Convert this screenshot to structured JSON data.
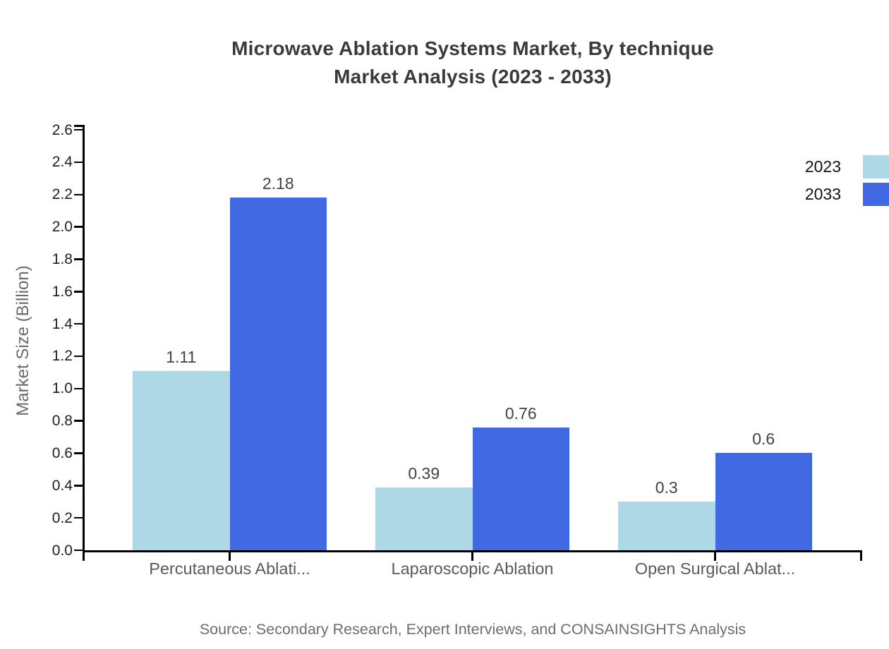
{
  "title": {
    "line1": "Microwave Ablation Systems Market, By technique",
    "line2": "Market Analysis (2023 - 2033)"
  },
  "source_note": "Source: Secondary Research, Expert Interviews, and CONSAINSIGHTS Analysis",
  "chart_data": {
    "type": "bar",
    "title": "Microwave Ablation Systems Market, By technique Market Analysis (2023 - 2033)",
    "categories": [
      "Percutaneous Ablati...",
      "Laparoscopic Ablation",
      "Open Surgical Ablat..."
    ],
    "series": [
      {
        "name": "2023",
        "color": "#add8e6",
        "values": [
          1.11,
          0.39,
          0.3
        ],
        "labels": [
          "1.11",
          "0.39",
          "0.3"
        ]
      },
      {
        "name": "2033",
        "color": "#4169e1",
        "values": [
          2.18,
          0.76,
          0.6
        ],
        "labels": [
          "2.18",
          "0.76",
          "0.6"
        ]
      }
    ],
    "xlabel": "",
    "ylabel": "Market Size (Billion)",
    "ylim": [
      0,
      2.6
    ],
    "ytick_step": 0.2,
    "ytick_labels": [
      "0.0",
      "0.2",
      "0.4",
      "0.6",
      "0.8",
      "1.0",
      "1.2",
      "1.4",
      "1.6",
      "1.8",
      "2.0",
      "2.2",
      "2.4",
      "2.6"
    ],
    "grid": false,
    "legend_position": "top-right",
    "axis_color": "#000000",
    "text_colors": {
      "title": "#3a3a3a",
      "tick_labels": "#1f1f1f",
      "category_labels": "#565b60",
      "value_labels": "#3f4348",
      "axis_title": "#6b6b6b",
      "source": "#6d6d6d",
      "legend": "#141414"
    }
  }
}
